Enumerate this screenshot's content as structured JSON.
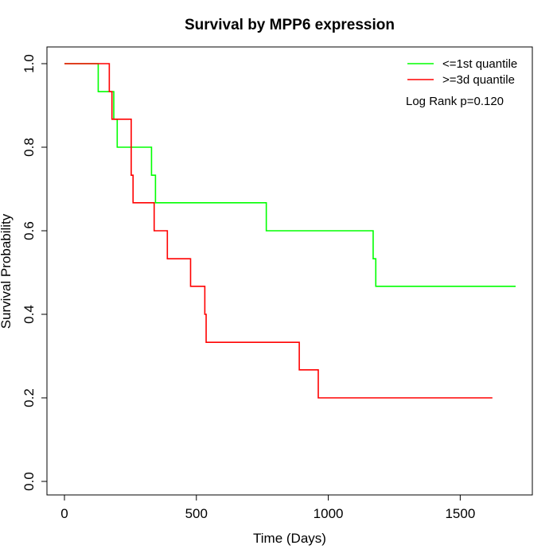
{
  "chart_data": {
    "type": "line",
    "step": true,
    "title": "Survival by MPP6 expression",
    "xlabel": "Time (Days)",
    "ylabel": "Survival Probability",
    "xlim": [
      0,
      1710
    ],
    "ylim": [
      0,
      1
    ],
    "xticks": [
      0,
      500,
      1000,
      1500
    ],
    "yticks": [
      0.0,
      0.2,
      0.4,
      0.6,
      0.8,
      1.0
    ],
    "xtick_labels": [
      "0",
      "500",
      "1000",
      "1500"
    ],
    "ytick_labels": [
      "0.0",
      "0.2",
      "0.4",
      "0.6",
      "0.8",
      "1.0"
    ],
    "grid": false,
    "legend_position": "top-right",
    "annotation": "Log Rank p=0.120",
    "series": [
      {
        "name": "<=1st quantile",
        "color": "#00ff00",
        "x": [
          0,
          128,
          187,
          200,
          330,
          345,
          765,
          1170,
          1180,
          1710
        ],
        "y": [
          1.0,
          0.933,
          0.867,
          0.8,
          0.733,
          0.667,
          0.6,
          0.533,
          0.467,
          0.467
        ]
      },
      {
        "name": ">=3d quantile",
        "color": "#ff0000",
        "x": [
          0,
          170,
          180,
          253,
          260,
          340,
          390,
          478,
          532,
          537,
          890,
          962,
          1622
        ],
        "y": [
          1.0,
          0.933,
          0.867,
          0.733,
          0.667,
          0.6,
          0.533,
          0.467,
          0.4,
          0.333,
          0.267,
          0.2,
          0.2
        ]
      }
    ]
  }
}
